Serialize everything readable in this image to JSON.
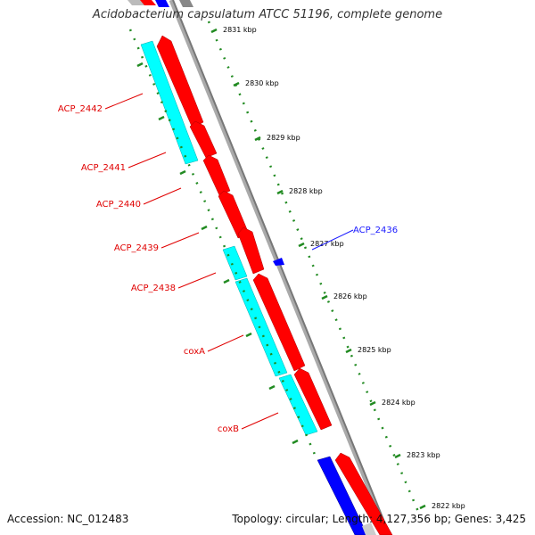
{
  "title": "Acidobacterium capsulatum ATCC 51196, complete genome",
  "footer": {
    "accession": "Accession: NC_012483",
    "summary": "Topology: circular; Length: 4,127,356 bp; Genes: 3,425"
  },
  "ticks": [
    {
      "label": "2831 kbp"
    },
    {
      "label": "2830 kbp"
    },
    {
      "label": "2829 kbp"
    },
    {
      "label": "2828 kbp"
    },
    {
      "label": "2827 kbp"
    },
    {
      "label": "2826 kbp"
    },
    {
      "label": "2825 kbp"
    },
    {
      "label": "2824 kbp"
    },
    {
      "label": "2823 kbp"
    },
    {
      "label": "2822 kbp"
    }
  ],
  "gene_labels": [
    {
      "name": "ACP_2442",
      "strand": "reverse"
    },
    {
      "name": "ACP_2441",
      "strand": "reverse"
    },
    {
      "name": "ACP_2440",
      "strand": "reverse"
    },
    {
      "name": "ACP_2439",
      "strand": "reverse"
    },
    {
      "name": "ACP_2438",
      "strand": "reverse"
    },
    {
      "name": "coxA",
      "strand": "reverse"
    },
    {
      "name": "coxB",
      "strand": "reverse"
    },
    {
      "name": "ACP_2436",
      "strand": "forward"
    }
  ],
  "colors": {
    "cds": "#ff0000",
    "orf": "#00ffff",
    "other_feature": "#0000ff",
    "backbone": "#999999",
    "tick": "#228b22",
    "label_reverse": "#e00000",
    "label_forward": "#1a1aff"
  }
}
